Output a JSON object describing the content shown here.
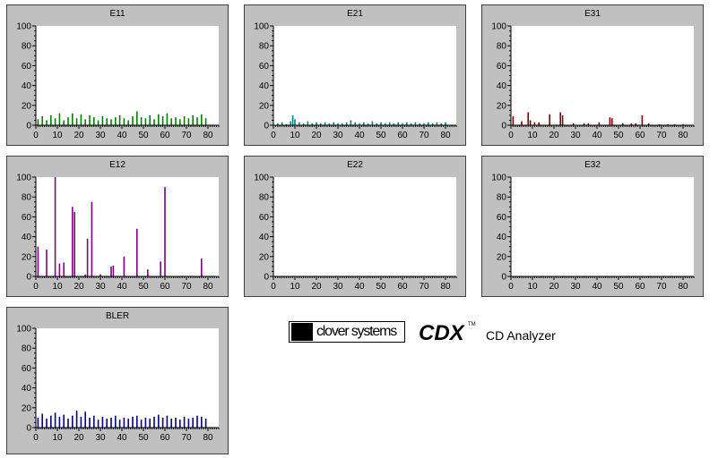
{
  "chart_data": [
    {
      "id": "e11",
      "type": "bar",
      "title": "E11",
      "color": "#008000",
      "xlim": [
        0,
        85
      ],
      "ylim": [
        0,
        100
      ],
      "x_ticks": [
        0,
        10,
        20,
        30,
        40,
        50,
        60,
        70,
        80
      ],
      "y_ticks": [
        0,
        20,
        40,
        60,
        80,
        100
      ],
      "x": [
        1,
        3,
        5,
        7,
        9,
        11,
        13,
        15,
        17,
        19,
        21,
        23,
        25,
        27,
        29,
        31,
        33,
        35,
        37,
        39,
        41,
        43,
        45,
        47,
        49,
        51,
        53,
        55,
        57,
        59,
        61,
        63,
        65,
        67,
        69,
        71,
        73,
        75,
        77,
        79
      ],
      "values": [
        6,
        9,
        5,
        10,
        7,
        12,
        5,
        8,
        12,
        7,
        11,
        6,
        10,
        8,
        5,
        9,
        7,
        6,
        8,
        10,
        7,
        5,
        9,
        14,
        8,
        7,
        10,
        6,
        11,
        9,
        12,
        7,
        8,
        6,
        9,
        7,
        10,
        8,
        11,
        7
      ]
    },
    {
      "id": "e21",
      "type": "bar",
      "title": "E21",
      "color": "#008080",
      "xlim": [
        0,
        85
      ],
      "ylim": [
        0,
        100
      ],
      "x_ticks": [
        0,
        10,
        20,
        30,
        40,
        50,
        60,
        70,
        80
      ],
      "y_ticks": [
        0,
        20,
        40,
        60,
        80,
        100
      ],
      "x": [
        2,
        4,
        6,
        8,
        9,
        10,
        12,
        14,
        16,
        18,
        20,
        22,
        24,
        26,
        28,
        30,
        32,
        34,
        36,
        38,
        40,
        42,
        44,
        46,
        48,
        50,
        52,
        54,
        56,
        58,
        60,
        62,
        64,
        66,
        68,
        70,
        72,
        74,
        76,
        78,
        80
      ],
      "values": [
        2,
        3,
        1,
        4,
        10,
        6,
        3,
        2,
        4,
        2,
        3,
        2,
        3,
        2,
        3,
        2,
        2,
        3,
        5,
        3,
        2,
        3,
        2,
        4,
        2,
        3,
        2,
        3,
        2,
        3,
        2,
        3,
        2,
        3,
        2,
        2,
        3,
        2,
        3,
        2,
        3
      ]
    },
    {
      "id": "e31",
      "type": "bar",
      "title": "E31",
      "color": "#800000",
      "xlim": [
        0,
        85
      ],
      "ylim": [
        0,
        100
      ],
      "x_ticks": [
        0,
        10,
        20,
        30,
        40,
        50,
        60,
        70,
        80
      ],
      "y_ticks": [
        0,
        20,
        40,
        60,
        80,
        100
      ],
      "x": [
        1,
        5,
        8,
        9,
        11,
        13,
        18,
        23,
        24,
        29,
        34,
        36,
        41,
        46,
        47,
        52,
        56,
        58,
        61,
        64,
        69,
        73,
        76,
        80
      ],
      "values": [
        9,
        4,
        13,
        5,
        3,
        3,
        11,
        13,
        10,
        2,
        2,
        2,
        3,
        8,
        7,
        2,
        2,
        2,
        10,
        2,
        1,
        1,
        1,
        1
      ]
    },
    {
      "id": "e12",
      "type": "bar",
      "title": "E12",
      "color": "#800080",
      "xlim": [
        0,
        85
      ],
      "ylim": [
        0,
        100
      ],
      "x_ticks": [
        0,
        10,
        20,
        30,
        40,
        50,
        60,
        70,
        80
      ],
      "y_ticks": [
        0,
        20,
        40,
        60,
        80,
        100
      ],
      "x": [
        1,
        5,
        9,
        11,
        13,
        17,
        18,
        23,
        24,
        26,
        30,
        35,
        36,
        41,
        47,
        52,
        58,
        60,
        77
      ],
      "values": [
        30,
        27,
        100,
        13,
        14,
        70,
        65,
        2,
        38,
        75,
        2,
        10,
        11,
        20,
        48,
        7,
        15,
        90,
        18
      ]
    },
    {
      "id": "e22",
      "type": "bar",
      "title": "E22",
      "color": "#800080",
      "xlim": [
        0,
        85
      ],
      "ylim": [
        0,
        100
      ],
      "x_ticks": [
        0,
        10,
        20,
        30,
        40,
        50,
        60,
        70,
        80
      ],
      "y_ticks": [
        0,
        20,
        40,
        60,
        80,
        100
      ],
      "x": [],
      "values": []
    },
    {
      "id": "e32",
      "type": "bar",
      "title": "E32",
      "color": "#800080",
      "xlim": [
        0,
        85
      ],
      "ylim": [
        0,
        100
      ],
      "x_ticks": [
        0,
        10,
        20,
        30,
        40,
        50,
        60,
        70,
        80
      ],
      "y_ticks": [
        0,
        20,
        40,
        60,
        80,
        100
      ],
      "x": [],
      "values": []
    },
    {
      "id": "bler",
      "type": "bar",
      "title": "BLER",
      "color": "#000080",
      "xlim": [
        0,
        85
      ],
      "ylim": [
        0,
        100
      ],
      "x_ticks": [
        0,
        10,
        20,
        30,
        40,
        50,
        60,
        70,
        80
      ],
      "y_ticks": [
        0,
        20,
        40,
        60,
        80,
        100
      ],
      "x": [
        1,
        3,
        5,
        7,
        9,
        11,
        13,
        15,
        17,
        19,
        21,
        23,
        25,
        27,
        29,
        31,
        33,
        35,
        37,
        39,
        41,
        43,
        45,
        47,
        49,
        51,
        53,
        55,
        57,
        59,
        61,
        63,
        65,
        67,
        69,
        71,
        73,
        75,
        77,
        79
      ],
      "values": [
        10,
        14,
        9,
        12,
        15,
        11,
        13,
        9,
        12,
        17,
        11,
        16,
        10,
        12,
        8,
        11,
        9,
        10,
        12,
        8,
        10,
        9,
        11,
        12,
        8,
        10,
        9,
        11,
        13,
        10,
        12,
        9,
        10,
        8,
        11,
        9,
        10,
        12,
        11,
        9
      ]
    }
  ],
  "brand": {
    "logo_text": "clover systems",
    "product": "CDX",
    "tm": "TM",
    "subtitle": "CD Analyzer"
  }
}
